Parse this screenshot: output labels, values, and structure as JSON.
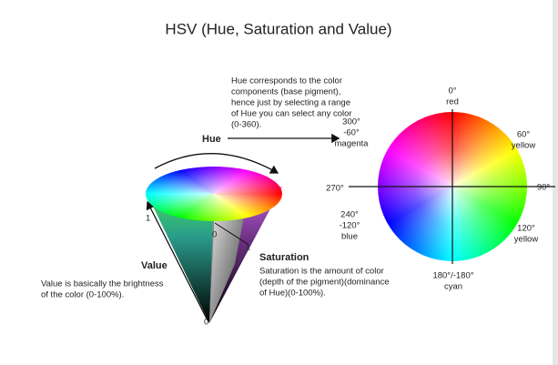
{
  "title": "HSV (Hue, Saturation and Value)",
  "hue_note": [
    "Hue corresponds to the color",
    "components (base pigment),",
    "hence just by selecting a range",
    "of Hue you can select any color",
    "(0-360)."
  ],
  "hue_label": "Hue",
  "saturation": {
    "label": "Saturation",
    "note": [
      "Saturation is the amount of color",
      "(depth of the pigment)(dominance",
      "of Hue)(0-100%)."
    ]
  },
  "value": {
    "label": "Value",
    "note": [
      "Value is basically the brightness",
      "of the color (0-100%)."
    ]
  },
  "cone_marks": [
    "1",
    "0",
    "0",
    "1"
  ],
  "wheel": {
    "labels": [
      [
        "0°",
        "red"
      ],
      [
        "60°",
        "yellow"
      ],
      [
        "90°"
      ],
      [
        "120°",
        "yellow"
      ],
      [
        "180°/-180°",
        "cyan"
      ],
      [
        "240°",
        "-120°",
        "blue"
      ],
      [
        "270°"
      ],
      [
        "300°",
        "-60°",
        "magenta"
      ]
    ]
  }
}
